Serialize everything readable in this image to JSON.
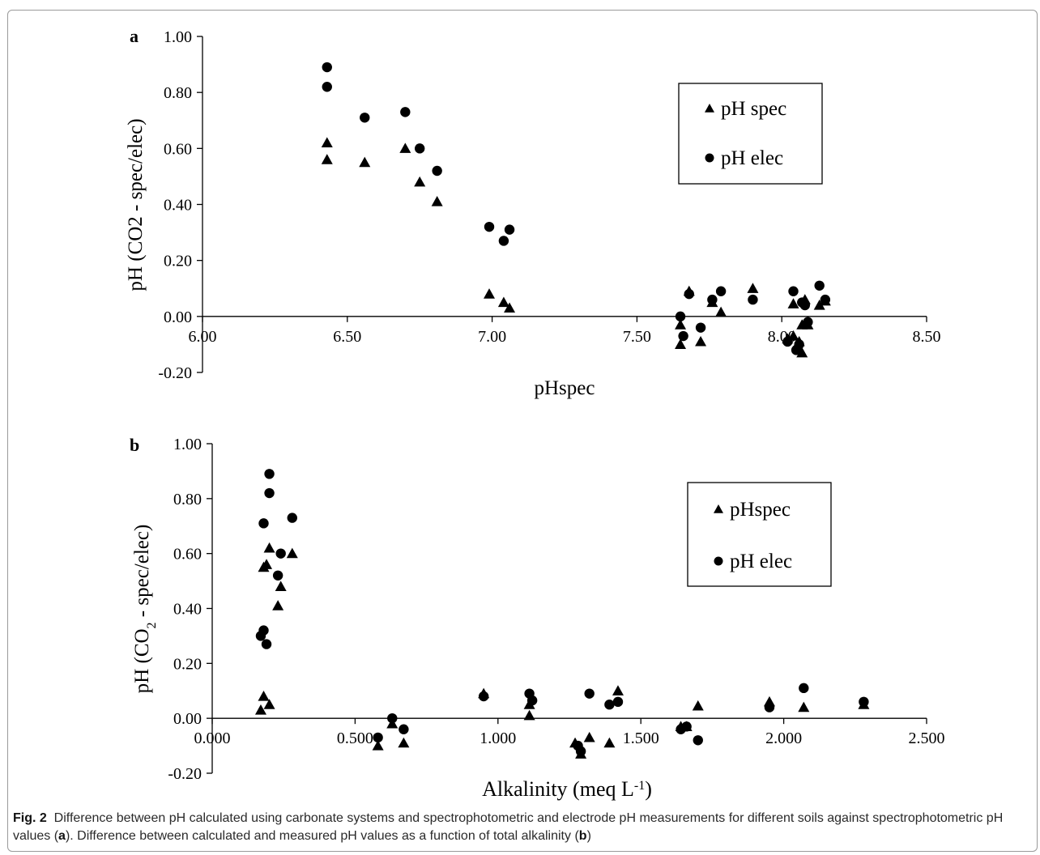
{
  "caption": {
    "label": "Fig. 2",
    "text": "Difference between pH calculated using carbonate systems and spectrophotometric and electrode pH measurements for different soils against spectrophotometric pH values (",
    "ref_a": "a",
    "text2": "). Difference between calculated and measured pH values as a function of total alkalinity (",
    "ref_b": "b",
    "text3": ")"
  },
  "chart_data": [
    {
      "panel": "a",
      "type": "scatter",
      "xlabel": "pHspec",
      "ylabel": "pH (CO2 - spec/elec)",
      "xlim": [
        6.0,
        8.5
      ],
      "ylim": [
        -0.2,
        1.0
      ],
      "xticks": [
        6.0,
        6.5,
        7.0,
        7.5,
        8.0,
        8.5
      ],
      "xtick_labels": [
        "6.00",
        "6.50",
        "7.00",
        "7.50",
        "8.00",
        "8.50"
      ],
      "yticks": [
        -0.2,
        0.0,
        0.2,
        0.4,
        0.6,
        0.8,
        1.0
      ],
      "ytick_labels": [
        "-0.20",
        "0.00",
        "0.20",
        "0.40",
        "0.60",
        "0.80",
        "1.00"
      ],
      "legend_position": "top-right",
      "series": [
        {
          "name": "pH spec",
          "marker": "triangle",
          "x": [
            6.43,
            6.43,
            6.56,
            6.7,
            6.75,
            6.81,
            6.99,
            7.04,
            7.06,
            7.65,
            7.65,
            7.68,
            7.72,
            7.76,
            7.79,
            7.9,
            8.02,
            8.04,
            8.04,
            8.06,
            8.07,
            8.07,
            8.08,
            8.09,
            8.13,
            8.15
          ],
          "y": [
            0.62,
            0.56,
            0.55,
            0.6,
            0.48,
            0.41,
            0.08,
            0.05,
            0.03,
            -0.03,
            -0.1,
            0.09,
            -0.09,
            0.05,
            0.015,
            0.1,
            -0.08,
            -0.07,
            0.045,
            -0.09,
            -0.13,
            -0.03,
            0.06,
            -0.03,
            0.04,
            0.055
          ]
        },
        {
          "name": "pH elec",
          "marker": "circle",
          "x": [
            6.43,
            6.43,
            6.56,
            6.7,
            6.75,
            6.81,
            6.99,
            7.04,
            7.06,
            7.65,
            7.66,
            7.68,
            7.72,
            7.76,
            7.79,
            7.9,
            8.02,
            8.04,
            8.05,
            8.06,
            8.07,
            8.08,
            8.09,
            8.13,
            8.15
          ],
          "y": [
            0.89,
            0.82,
            0.71,
            0.73,
            0.6,
            0.52,
            0.32,
            0.27,
            0.31,
            0.0,
            -0.07,
            0.08,
            -0.04,
            0.06,
            0.09,
            0.06,
            -0.09,
            0.09,
            -0.12,
            -0.1,
            0.05,
            0.04,
            -0.02,
            0.11,
            0.06
          ]
        }
      ]
    },
    {
      "panel": "b",
      "type": "scatter",
      "xlabel": "Alkalinity (meq L",
      "xlabel_sup": "-1",
      "xlabel_end": ")",
      "ylabel": "pH (CO",
      "ylabel_sub": "2",
      "ylabel_end": " - spec/elec)",
      "xlim": [
        0.0,
        2.5
      ],
      "ylim": [
        -0.2,
        1.0
      ],
      "xticks": [
        0.0,
        0.5,
        1.0,
        1.5,
        2.0,
        2.5
      ],
      "xtick_labels": [
        "0.000",
        "0.500",
        "1.000",
        "1.500",
        "2.000",
        "2.500"
      ],
      "yticks": [
        -0.2,
        0.0,
        0.2,
        0.4,
        0.6,
        0.8,
        1.0
      ],
      "ytick_labels": [
        "-0.20",
        "0.00",
        "0.20",
        "0.40",
        "0.60",
        "0.80",
        "1.00"
      ],
      "legend_position": "top-right",
      "series": [
        {
          "name": "pHspec",
          "marker": "triangle",
          "x": [
            0.17,
            0.18,
            0.18,
            0.19,
            0.2,
            0.2,
            0.23,
            0.24,
            0.28,
            0.58,
            0.63,
            0.67,
            0.95,
            1.11,
            1.11,
            1.27,
            1.29,
            1.32,
            1.39,
            1.42,
            1.64,
            1.66,
            1.7,
            1.95,
            2.07,
            2.28
          ],
          "y": [
            0.03,
            0.55,
            0.08,
            0.56,
            0.62,
            0.05,
            0.41,
            0.48,
            0.6,
            -0.1,
            -0.02,
            -0.09,
            0.09,
            0.01,
            0.05,
            -0.09,
            -0.13,
            -0.07,
            -0.09,
            0.1,
            -0.03,
            -0.03,
            0.045,
            0.06,
            0.04,
            0.05
          ]
        },
        {
          "name": "pH elec",
          "marker": "circle",
          "x": [
            0.17,
            0.18,
            0.18,
            0.19,
            0.2,
            0.2,
            0.23,
            0.24,
            0.28,
            0.58,
            0.63,
            0.67,
            0.95,
            1.11,
            1.12,
            1.28,
            1.29,
            1.32,
            1.39,
            1.42,
            1.64,
            1.66,
            1.7,
            1.95,
            2.07,
            2.28
          ],
          "y": [
            0.3,
            0.71,
            0.32,
            0.27,
            0.82,
            0.89,
            0.52,
            0.6,
            0.73,
            -0.07,
            0.0,
            -0.04,
            0.08,
            0.09,
            0.065,
            -0.1,
            -0.12,
            0.09,
            0.05,
            0.06,
            -0.04,
            -0.03,
            -0.08,
            0.04,
            0.11,
            0.06
          ]
        }
      ]
    }
  ]
}
